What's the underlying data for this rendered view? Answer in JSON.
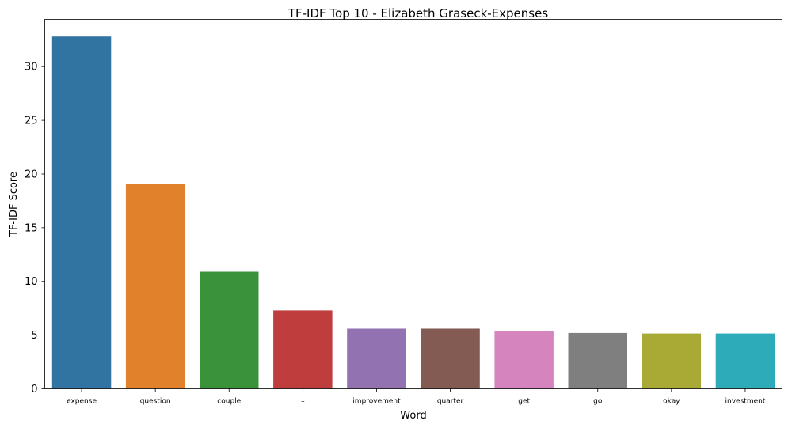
{
  "chart_data": {
    "type": "bar",
    "title": "TF-IDF Top 10 - Elizabeth Graseck-Expenses",
    "xlabel": "Word",
    "ylabel": "TF-IDF Score",
    "categories": [
      "expense",
      "question",
      "couple",
      "–",
      "improvement",
      "quarter",
      "get",
      "go",
      "okay",
      "investment"
    ],
    "values": [
      32.8,
      19.1,
      10.9,
      7.3,
      5.6,
      5.6,
      5.4,
      5.2,
      5.15,
      5.15
    ],
    "colors": [
      "#3274a1",
      "#e1812c",
      "#3a923a",
      "#c03d3e",
      "#9372b2",
      "#845b53",
      "#d684bd",
      "#7f7f7f",
      "#a9aa35",
      "#2eabb8"
    ],
    "yticks": [
      0,
      5,
      10,
      15,
      20,
      25,
      30
    ],
    "ylim": [
      0,
      34.4
    ],
    "grid": false,
    "legend": "none"
  }
}
